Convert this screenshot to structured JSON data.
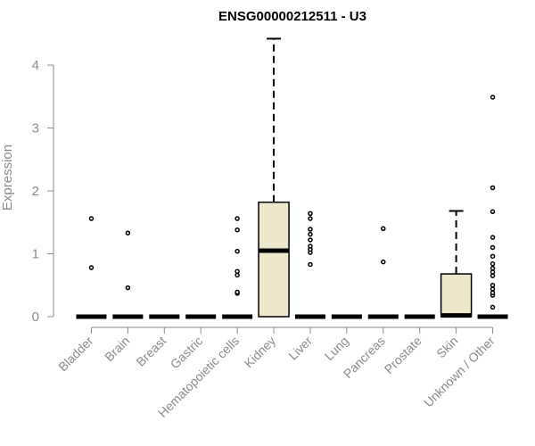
{
  "chart_data": {
    "type": "boxplot",
    "title": "ENSG00000212511 - U3",
    "ylabel": "Expression",
    "xlabel": "",
    "ylim": [
      0,
      4.45
    ],
    "yticks": [
      0,
      1,
      2,
      3,
      4
    ],
    "box_color": "#ede7cc",
    "categories": [
      "Bladder",
      "Brain",
      "Breast",
      "Gastric",
      "Hematopoietic cells",
      "Kidney",
      "Liver",
      "Lung",
      "Pancreas",
      "Prostate",
      "Skin",
      "Unknown / Other"
    ],
    "boxes": [
      {
        "min": 0,
        "q1": 0,
        "median": 0,
        "q3": 0,
        "max": 0,
        "outliers": [
          0.78,
          1.56
        ]
      },
      {
        "min": 0,
        "q1": 0,
        "median": 0,
        "q3": 0,
        "max": 0,
        "outliers": [
          0.46,
          1.33
        ]
      },
      {
        "min": 0,
        "q1": 0,
        "median": 0,
        "q3": 0,
        "max": 0,
        "outliers": []
      },
      {
        "min": 0,
        "q1": 0,
        "median": 0,
        "q3": 0,
        "max": 0,
        "outliers": []
      },
      {
        "min": 0,
        "q1": 0,
        "median": 0,
        "q3": 0,
        "max": 0,
        "outliers": [
          0.37,
          0.39,
          0.66,
          0.72,
          1.04,
          1.38,
          1.56
        ]
      },
      {
        "min": 0,
        "q1": 0,
        "median": 1.05,
        "q3": 1.82,
        "max": 4.42,
        "outliers": []
      },
      {
        "min": 0,
        "q1": 0,
        "median": 0,
        "q3": 0,
        "max": 0,
        "outliers": [
          0.83,
          1.02,
          1.07,
          1.12,
          1.22,
          1.31,
          1.39,
          1.56,
          1.64
        ]
      },
      {
        "min": 0,
        "q1": 0,
        "median": 0,
        "q3": 0,
        "max": 0,
        "outliers": []
      },
      {
        "min": 0,
        "q1": 0,
        "median": 0,
        "q3": 0,
        "max": 0,
        "outliers": [
          0.87,
          1.4
        ]
      },
      {
        "min": 0,
        "q1": 0,
        "median": 0,
        "q3": 0,
        "max": 0,
        "outliers": []
      },
      {
        "min": 0,
        "q1": 0,
        "median": 0.02,
        "q3": 0.68,
        "max": 1.68,
        "outliers": []
      },
      {
        "min": 0,
        "q1": 0,
        "median": 0,
        "q3": 0,
        "max": 0,
        "outliers": [
          0.15,
          0.34,
          0.38,
          0.44,
          0.5,
          0.65,
          0.71,
          0.77,
          0.84,
          0.96,
          1.1,
          1.26,
          1.67,
          2.05,
          3.49
        ]
      }
    ]
  }
}
